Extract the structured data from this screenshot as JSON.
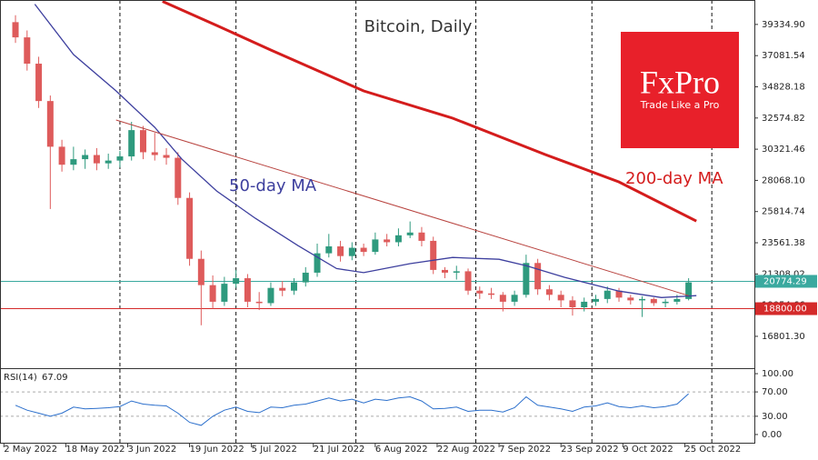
{
  "chart_data": {
    "type": "candlestick",
    "title": "Bitcoin, Daily",
    "x": [
      "2022-05-05",
      "2022-05-08",
      "2022-05-11",
      "2022-05-14",
      "2022-05-17",
      "2022-05-20",
      "2022-05-23",
      "2022-05-26",
      "2022-05-29",
      "2022-06-01",
      "2022-06-04",
      "2022-06-07",
      "2022-06-10",
      "2022-06-13",
      "2022-06-16",
      "2022-06-19",
      "2022-06-22",
      "2022-06-25",
      "2022-06-28",
      "2022-07-01",
      "2022-07-04",
      "2022-07-07",
      "2022-07-10",
      "2022-07-13",
      "2022-07-16",
      "2022-07-19",
      "2022-07-22",
      "2022-07-25",
      "2022-07-28",
      "2022-07-31",
      "2022-08-03",
      "2022-08-06",
      "2022-08-09",
      "2022-08-12",
      "2022-08-15",
      "2022-08-18",
      "2022-08-21",
      "2022-08-24",
      "2022-08-27",
      "2022-08-30",
      "2022-09-02",
      "2022-09-05",
      "2022-09-08",
      "2022-09-11",
      "2022-09-14",
      "2022-09-17",
      "2022-09-20",
      "2022-09-23",
      "2022-09-26",
      "2022-09-29",
      "2022-10-02",
      "2022-10-05",
      "2022-10-08",
      "2022-10-11",
      "2022-10-14",
      "2022-10-17",
      "2022-10-20",
      "2022-10-23",
      "2022-10-26"
    ],
    "open": [
      39500,
      38400,
      36500,
      33800,
      30500,
      29200,
      29600,
      29900,
      29300,
      29500,
      29800,
      31700,
      30100,
      29900,
      29700,
      26800,
      22400,
      20500,
      19300,
      20600,
      21000,
      19300,
      19200,
      20300,
      20100,
      20700,
      21400,
      22800,
      23300,
      22600,
      23200,
      22900,
      23800,
      23600,
      24100,
      24300,
      23700,
      21600,
      21400,
      21500,
      20100,
      19900,
      19800,
      19300,
      19800,
      22100,
      20200,
      19800,
      19400,
      18900,
      19300,
      19500,
      20100,
      19600,
      19400,
      19500,
      19200,
      19300,
      19500
    ],
    "high": [
      40000,
      38900,
      37000,
      34200,
      31000,
      30500,
      30300,
      30400,
      30000,
      30200,
      32300,
      32000,
      31500,
      30400,
      30100,
      27200,
      23000,
      21200,
      21100,
      21600,
      21300,
      20000,
      20700,
      20800,
      21000,
      21800,
      23500,
      24200,
      23700,
      23600,
      23500,
      24300,
      24200,
      24600,
      25100,
      24700,
      24000,
      21800,
      21900,
      21700,
      20400,
      20300,
      20000,
      20100,
      22700,
      22400,
      20500,
      20100,
      19700,
      19600,
      19800,
      20400,
      20300,
      19800,
      19700,
      19600,
      19500,
      19800,
      21000
    ],
    "low": [
      38000,
      36000,
      33300,
      26000,
      28700,
      28800,
      28900,
      28800,
      28900,
      29000,
      29500,
      29600,
      29500,
      29200,
      26300,
      21900,
      17600,
      18800,
      19000,
      20300,
      18900,
      18700,
      19000,
      19700,
      19800,
      20400,
      21100,
      22500,
      22200,
      22300,
      22600,
      22700,
      23300,
      23300,
      23900,
      23300,
      21300,
      21000,
      20900,
      19800,
      19500,
      19500,
      18600,
      19000,
      19600,
      19800,
      19400,
      18900,
      18300,
      18600,
      19000,
      19200,
      19300,
      19100,
      18200,
      19000,
      18900,
      19100,
      19400
    ],
    "close": [
      38400,
      36500,
      33800,
      30500,
      29200,
      29600,
      29900,
      29300,
      29500,
      29800,
      31700,
      30100,
      29900,
      29700,
      26800,
      22400,
      20500,
      19300,
      20600,
      21000,
      19300,
      19200,
      20300,
      20100,
      20700,
      21400,
      22800,
      23300,
      22600,
      23200,
      22900,
      23800,
      23600,
      24100,
      24300,
      23700,
      21600,
      21400,
      21500,
      20100,
      19900,
      19800,
      19300,
      19800,
      22100,
      20200,
      19800,
      19400,
      18900,
      19300,
      19500,
      20100,
      19600,
      19400,
      19500,
      19200,
      19300,
      19500,
      20700
    ],
    "up_color": "#2e9a7e",
    "down_color": "#de5b5b",
    "lines": [
      {
        "name": "50-day MA",
        "color": "#3d3f9e",
        "width": 1.3,
        "x": [
          "2022-05-10",
          "2022-05-20",
          "2022-05-31",
          "2022-06-10",
          "2022-06-17",
          "2022-06-26",
          "2022-07-06",
          "2022-07-17",
          "2022-07-27",
          "2022-08-03",
          "2022-08-15",
          "2022-08-26",
          "2022-09-07",
          "2022-09-14",
          "2022-09-24",
          "2022-10-08",
          "2022-10-19",
          "2022-10-28"
        ],
        "values": [
          40800,
          37160,
          34530,
          31900,
          29600,
          27300,
          25330,
          23360,
          21700,
          21400,
          22050,
          22500,
          22370,
          21900,
          21060,
          20070,
          19600,
          19740
        ]
      },
      {
        "name": "200-day MA",
        "color": "#d41c1c",
        "width": 3,
        "x": [
          "2022-06-12",
          "2022-06-26",
          "2022-07-10",
          "2022-08-03",
          "2022-08-26",
          "2022-09-19",
          "2022-10-08",
          "2022-10-28"
        ],
        "values": [
          41000,
          39260,
          37490,
          34530,
          32560,
          29930,
          27960,
          25130
        ]
      },
      {
        "color": "#b8433f",
        "width": 1,
        "x": [
          "2022-05-31",
          "2022-10-26"
        ],
        "values": [
          32430,
          19740
        ]
      }
    ],
    "hlines": [
      {
        "value": 20774.29,
        "color": "#3aa99f"
      },
      {
        "value": 18800,
        "label": "18800.00",
        "color": "#d42a2a"
      }
    ],
    "xlim": [
      "2022-05-01",
      "2022-11-12"
    ],
    "ylim": [
      14500,
      41100
    ],
    "yticks": [
      {
        "value": 39334.9,
        "label": "39334.90"
      },
      37081.54,
      34828.18,
      32574.82,
      30321.46,
      {
        "value": 28068.1,
        "label": "28068.10"
      },
      25814.74,
      23561.38,
      21308.02,
      19054.66,
      {
        "value": 16801.3,
        "label": "16801.30"
      }
    ],
    "xticks": [
      {
        "value": "2022-05-02",
        "label": "2 May 2022"
      },
      {
        "value": "2022-05-18",
        "label": "18 May 2022"
      },
      {
        "value": "2022-06-03",
        "label": "3 Jun 2022"
      },
      {
        "value": "2022-06-19",
        "label": "19 Jun 2022"
      },
      {
        "value": "2022-07-05",
        "label": "5 Jul 2022"
      },
      {
        "value": "2022-07-21",
        "label": "21 Jul 2022"
      },
      {
        "value": "2022-08-06",
        "label": "6 Aug 2022"
      },
      {
        "value": "2022-08-22",
        "label": "22 Aug 2022"
      },
      {
        "value": "2022-09-07",
        "label": "7 Sep 2022"
      },
      {
        "value": "2022-09-23",
        "label": "23 Sep 2022"
      },
      {
        "value": "2022-10-09",
        "label": "9 Oct 2022"
      },
      {
        "value": "2022-10-25",
        "label": "25 Oct 2022"
      }
    ],
    "xgrid": [
      "2022-06-01",
      "2022-07-01",
      "2022-08-01",
      "2022-09-01",
      "2022-10-01",
      "2022-11-01"
    ],
    "rsi": {
      "name": "RSI(14)",
      "color": "#2b6fcc",
      "values": [
        48,
        40,
        35,
        30,
        35,
        45,
        42,
        43,
        44,
        46,
        55,
        50,
        48,
        47,
        35,
        20,
        15,
        30,
        40,
        45,
        38,
        36,
        45,
        44,
        48,
        50,
        55,
        60,
        55,
        58,
        52,
        58,
        56,
        60,
        62,
        55,
        42,
        43,
        45,
        38,
        40,
        40,
        37,
        44,
        62,
        48,
        45,
        42,
        38,
        45,
        47,
        52,
        46,
        44,
        47,
        44,
        46,
        50,
        67.09
      ],
      "ylim": [
        -15,
        109
      ],
      "yticks": [
        {
          "value": 100,
          "label": "100.00"
        },
        {
          "value": 70,
          "label": "70.00"
        },
        {
          "value": 30,
          "label": "30.00"
        },
        {
          "value": 0,
          "label": "0.00"
        }
      ],
      "levels": [
        70,
        30
      ]
    }
  },
  "logo": {
    "brand": "FxPro",
    "tagline": "Trade Like a Pro"
  }
}
